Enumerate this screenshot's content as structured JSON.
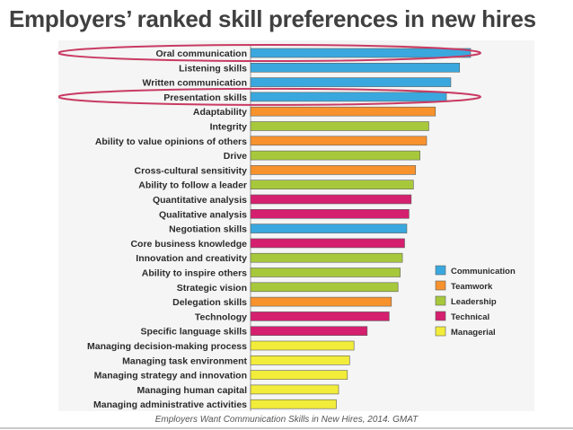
{
  "title": "Employers’ ranked skill preferences in new hires",
  "source": "Employers Want Communication Skills in New Hires, 2014. GMAT",
  "colors": {
    "Communication": "#3aa8de",
    "Teamwork": "#f7922d",
    "Leadership": "#a8c83c",
    "Technical": "#d51f6f",
    "Managerial": "#f2ec3a",
    "highlight": "#c93a63"
  },
  "chart_data": {
    "type": "bar",
    "orientation": "horizontal",
    "title": "",
    "xlabel": "",
    "ylabel": "",
    "xlim": [
      0,
      100
    ],
    "grid": false,
    "legend": "right",
    "categories": [
      "Oral communication",
      "Listening skills",
      "Written communication",
      "Presentation skills",
      "Adaptability",
      "Integrity",
      "Ability to value opinions of others",
      "Drive",
      "Cross-cultural sensitivity",
      "Ability to follow a leader",
      "Quantitative analysis",
      "Qualitative analysis",
      "Negotiation skills",
      "Core business knowledge",
      "Innovation and creativity",
      "Ability to inspire others",
      "Strategic vision",
      "Delegation skills",
      "Technology",
      "Specific language skills",
      "Managing decision-making process",
      "Managing task environment",
      "Managing strategy and innovation",
      "Managing human capital",
      "Managing administrative activities"
    ],
    "values": [
      100,
      95,
      91,
      89,
      84,
      81,
      80,
      77,
      75,
      74,
      73,
      72,
      71,
      70,
      69,
      68,
      67,
      64,
      63,
      53,
      47,
      45,
      44,
      40,
      39
    ],
    "groups": [
      "Communication",
      "Communication",
      "Communication",
      "Communication",
      "Teamwork",
      "Leadership",
      "Teamwork",
      "Leadership",
      "Teamwork",
      "Leadership",
      "Technical",
      "Technical",
      "Communication",
      "Technical",
      "Leadership",
      "Leadership",
      "Leadership",
      "Teamwork",
      "Technical",
      "Technical",
      "Managerial",
      "Managerial",
      "Managerial",
      "Managerial",
      "Managerial"
    ],
    "legend_entries": [
      "Communication",
      "Teamwork",
      "Leadership",
      "Technical",
      "Managerial"
    ],
    "highlighted": [
      "Oral communication",
      "Presentation skills"
    ]
  }
}
